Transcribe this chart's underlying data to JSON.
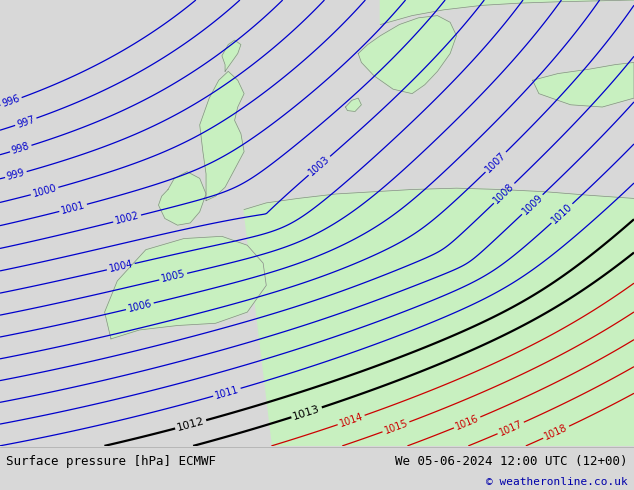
{
  "title_left": "Surface pressure [hPa] ECMWF",
  "title_right": "We 05-06-2024 12:00 UTC (12+00)",
  "copyright": "© weatheronline.co.uk",
  "bg_color": "#d8d8d8",
  "land_color": "#c8f0c0",
  "coast_color": "#888888",
  "footer_bg": "#e8e8e8",
  "footer_text_color": "#000000",
  "blue_line_color": "#0000cc",
  "red_line_color": "#cc0000",
  "black_line_color": "#000000",
  "label_color_blue": "#0000cc",
  "label_color_red": "#cc0000",
  "label_color_black": "#000000",
  "figsize": [
    6.34,
    4.9
  ],
  "dpi": 100,
  "blue_levels": [
    996,
    997,
    998,
    999,
    1000,
    1001,
    1002,
    1003,
    1004,
    1005,
    1006,
    1007,
    1008,
    1009,
    1010,
    1011
  ],
  "black_levels": [
    1012,
    1013
  ],
  "red_levels": [
    1014,
    1015,
    1016,
    1017,
    1018
  ]
}
